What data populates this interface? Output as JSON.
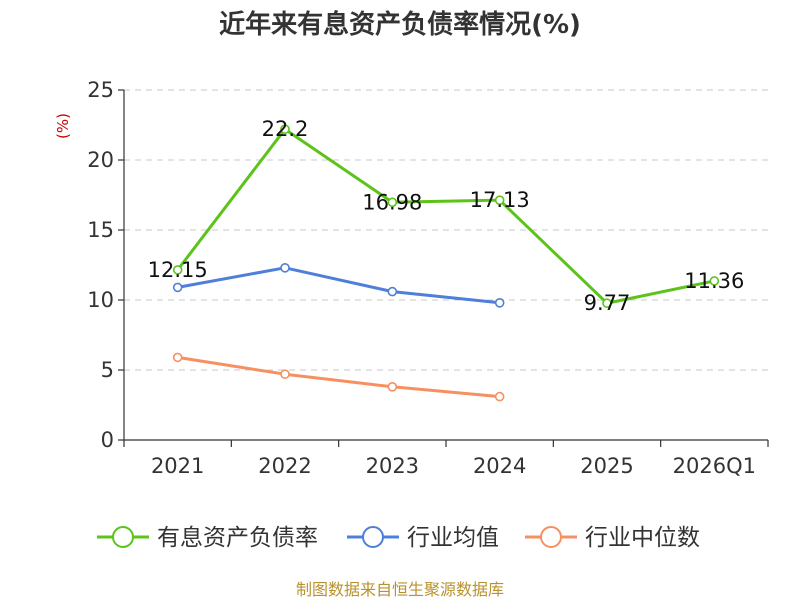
{
  "chart_data": {
    "type": "line",
    "title": "近年来有息资产负债率情况(%)",
    "ylabel": "(%)",
    "xlabel": "",
    "categories": [
      "2021",
      "2022",
      "2023",
      "2024",
      "2025",
      "2026Q1"
    ],
    "ylim": [
      0,
      25
    ],
    "yticks": [
      0,
      5,
      10,
      15,
      20,
      25
    ],
    "grid": true,
    "legend_position": "bottom",
    "series": [
      {
        "name": "有息资产负债率",
        "color": "#5cc31b",
        "values": [
          12.15,
          22.2,
          16.98,
          17.13,
          9.77,
          11.36
        ],
        "labels": [
          "12.15",
          "22.2",
          "16.98",
          "17.13",
          "9.77",
          "11.36"
        ]
      },
      {
        "name": "行业均值",
        "color": "#4e7fd9",
        "values": [
          10.9,
          12.3,
          10.6,
          9.8,
          null,
          null
        ]
      },
      {
        "name": "行业中位数",
        "color": "#f79060",
        "values": [
          5.9,
          4.7,
          3.8,
          3.1,
          null,
          null
        ]
      }
    ],
    "source": "制图数据来自恒生聚源数据库"
  }
}
